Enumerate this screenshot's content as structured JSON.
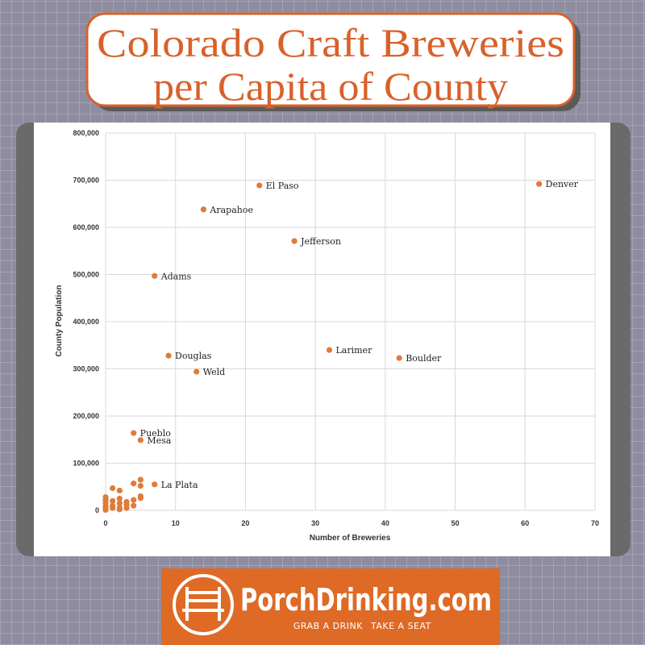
{
  "title": [
    "Colorado Craft Breweries",
    "per Capita of County"
  ],
  "chart_data": {
    "type": "scatter",
    "xlabel": "Number of Breweries",
    "ylabel": "County Population",
    "color": "#e07b39",
    "grid": true,
    "xlim": [
      0,
      70
    ],
    "xticks": [
      0,
      10,
      20,
      30,
      40,
      50,
      60,
      70
    ],
    "ylim": [
      0,
      800000
    ],
    "yticks": [
      {
        "value": 0,
        "label": "0"
      },
      {
        "value": 100000,
        "label": "100,000"
      },
      {
        "value": 200000,
        "label": "200,000"
      },
      {
        "value": 300000,
        "label": "300,000"
      },
      {
        "value": 400000,
        "label": "400,000"
      },
      {
        "value": 500000,
        "label": "500,000"
      },
      {
        "value": 600000,
        "label": "600,000"
      },
      {
        "value": 700000,
        "label": "700,000"
      },
      {
        "value": 800000,
        "label": "800,000"
      }
    ],
    "x": [
      62,
      22,
      14,
      27,
      7,
      32,
      42,
      9,
      13,
      4,
      5,
      7,
      5,
      4,
      5,
      1,
      2,
      5,
      5,
      4,
      3,
      2,
      3,
      0,
      0,
      0,
      0,
      0,
      1,
      1,
      2,
      2,
      3,
      4,
      1,
      2,
      0
    ],
    "values": [
      692000,
      689000,
      638000,
      571000,
      497000,
      340000,
      323000,
      328000,
      294000,
      164000,
      149000,
      55000,
      65000,
      57000,
      52000,
      47000,
      42000,
      30000,
      26000,
      22000,
      18000,
      15000,
      12000,
      28000,
      22000,
      15000,
      8000,
      3000,
      10000,
      5000,
      6000,
      2000,
      5000,
      10000,
      20000,
      25000,
      1000
    ],
    "labels": [
      "Denver",
      "El Paso",
      "Arapahoe",
      "Jefferson",
      "Adams",
      "Larimer",
      "Boulder",
      "Douglas",
      "Weld",
      "Pueblo",
      "Mesa",
      "La Plata",
      null,
      null,
      null,
      null,
      null,
      null,
      null,
      null,
      null,
      null,
      null,
      null,
      null,
      null,
      null,
      null,
      null,
      null,
      null,
      null,
      null,
      null,
      null,
      null,
      null
    ]
  },
  "logo": {
    "name": "PorchDrinking.com",
    "tagline_left": "GRAB A DRINK",
    "tagline_right": "TAKE A SEAT"
  }
}
